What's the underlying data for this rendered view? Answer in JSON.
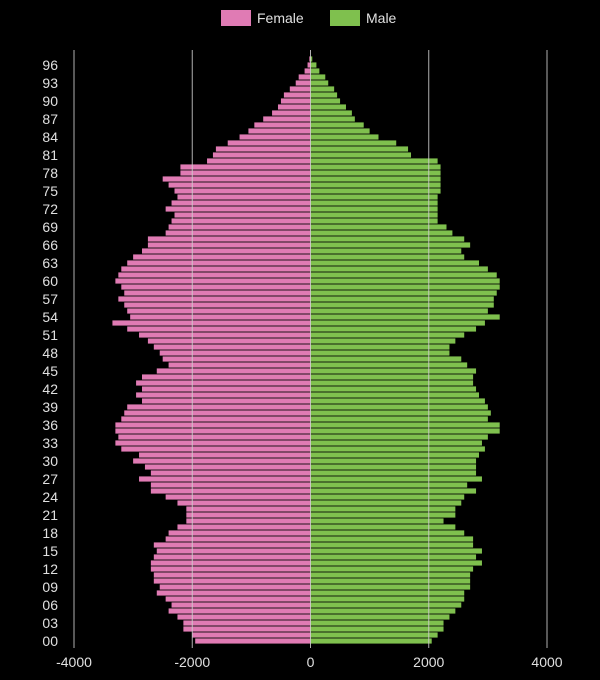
{
  "chart_data": {
    "type": "bar",
    "orientation": "horizontal",
    "title": "",
    "xlabel": "",
    "ylabel": "",
    "xlim": [
      -4000,
      4000
    ],
    "x_ticks": [
      -4000,
      -2000,
      0,
      2000,
      4000
    ],
    "x_tick_labels": [
      "-4000",
      "-2000",
      "0",
      "2000",
      "4000"
    ],
    "grid": true,
    "legend_position": "top-center",
    "categories": [
      0,
      1,
      2,
      3,
      4,
      5,
      6,
      7,
      8,
      9,
      10,
      11,
      12,
      13,
      14,
      15,
      16,
      17,
      18,
      19,
      20,
      21,
      22,
      23,
      24,
      25,
      26,
      27,
      28,
      29,
      30,
      31,
      32,
      33,
      34,
      35,
      36,
      37,
      38,
      39,
      40,
      41,
      42,
      43,
      44,
      45,
      46,
      47,
      48,
      49,
      50,
      51,
      52,
      53,
      54,
      55,
      56,
      57,
      58,
      59,
      60,
      61,
      62,
      63,
      64,
      65,
      66,
      67,
      68,
      69,
      70,
      71,
      72,
      73,
      74,
      75,
      76,
      77,
      78,
      79,
      80,
      81,
      82,
      83,
      84,
      85,
      86,
      87,
      88,
      89,
      90,
      91,
      92,
      93,
      94,
      95,
      96,
      97
    ],
    "y_tick_labels": [
      "00",
      "03",
      "06",
      "09",
      "12",
      "15",
      "18",
      "21",
      "24",
      "27",
      "30",
      "33",
      "36",
      "39",
      "42",
      "45",
      "48",
      "51",
      "54",
      "57",
      "60",
      "63",
      "66",
      "69",
      "72",
      "75",
      "78",
      "81",
      "84",
      "87",
      "90",
      "93",
      "96"
    ],
    "series": [
      {
        "name": "Female",
        "color": "#e07bb4",
        "values": [
          -1950,
          -2000,
          -2150,
          -2150,
          -2250,
          -2400,
          -2350,
          -2450,
          -2600,
          -2550,
          -2650,
          -2650,
          -2700,
          -2700,
          -2650,
          -2600,
          -2650,
          -2450,
          -2400,
          -2250,
          -2100,
          -2100,
          -2100,
          -2250,
          -2450,
          -2700,
          -2700,
          -2900,
          -2700,
          -2800,
          -3000,
          -2900,
          -3200,
          -3300,
          -3250,
          -3300,
          -3300,
          -3200,
          -3150,
          -3100,
          -2850,
          -2950,
          -2850,
          -2950,
          -2850,
          -2600,
          -2400,
          -2500,
          -2550,
          -2650,
          -2750,
          -2900,
          -3100,
          -3350,
          -3050,
          -3100,
          -3150,
          -3250,
          -3150,
          -3200,
          -3300,
          -3250,
          -3200,
          -3100,
          -3000,
          -2850,
          -2750,
          -2750,
          -2450,
          -2400,
          -2350,
          -2300,
          -2450,
          -2350,
          -2250,
          -2300,
          -2400,
          -2500,
          -2200,
          -2200,
          -1750,
          -1650,
          -1600,
          -1400,
          -1200,
          -1050,
          -950,
          -800,
          -650,
          -550,
          -500,
          -450,
          -350,
          -250,
          -200,
          -100,
          -50,
          -20
        ]
      },
      {
        "name": "Male",
        "color": "#7fc04e",
        "values": [
          2050,
          2150,
          2250,
          2250,
          2350,
          2450,
          2550,
          2600,
          2600,
          2700,
          2700,
          2700,
          2750,
          2900,
          2800,
          2900,
          2750,
          2750,
          2600,
          2450,
          2250,
          2450,
          2450,
          2550,
          2600,
          2800,
          2650,
          2900,
          2800,
          2800,
          2800,
          2850,
          2950,
          2900,
          3000,
          3200,
          3200,
          3000,
          3050,
          3000,
          2950,
          2850,
          2800,
          2750,
          2750,
          2800,
          2650,
          2550,
          2350,
          2350,
          2450,
          2600,
          2800,
          2950,
          3200,
          3000,
          3100,
          3100,
          3150,
          3200,
          3200,
          3150,
          3000,
          2850,
          2600,
          2550,
          2700,
          2600,
          2400,
          2300,
          2150,
          2150,
          2150,
          2150,
          2150,
          2200,
          2200,
          2200,
          2200,
          2200,
          2150,
          1700,
          1650,
          1450,
          1150,
          1000,
          900,
          750,
          700,
          600,
          500,
          450,
          400,
          300,
          250,
          150,
          100,
          30
        ]
      }
    ]
  }
}
